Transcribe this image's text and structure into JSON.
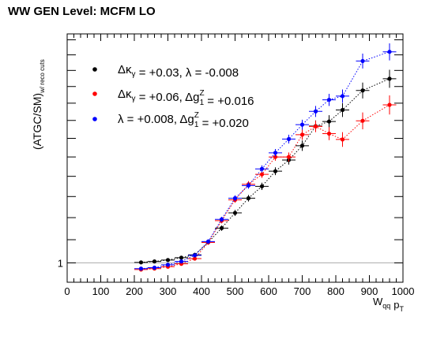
{
  "chart_data": {
    "type": "scatter",
    "title": "WW GEN Level: MCFM LO",
    "xlabel": "W_qq p_T",
    "ylabel": "(ATGC/SM)_w/ reco cuts",
    "xlim": [
      0,
      1000
    ],
    "ylim": [
      0.96,
      1.62
    ],
    "yscale": "log",
    "grid": false,
    "reference_line": 1,
    "x_tick_labels": [
      "0",
      "100",
      "200",
      "300",
      "400",
      "500",
      "600",
      "700",
      "800",
      "900",
      "1000"
    ],
    "y_tick_labels": [
      "1"
    ],
    "legend_position": "top-left",
    "x_error": 20,
    "series": [
      {
        "name": "Δκγ = +0.03, λ = -0.008",
        "color": "#000000",
        "x": [
          220,
          260,
          300,
          340,
          380,
          420,
          460,
          500,
          540,
          580,
          620,
          660,
          700,
          740,
          780,
          820,
          880,
          960
        ],
        "y": [
          1.001,
          1.003,
          1.006,
          1.011,
          1.017,
          1.044,
          1.076,
          1.111,
          1.146,
          1.175,
          1.213,
          1.242,
          1.28,
          1.334,
          1.347,
          1.38,
          1.438,
          1.474
        ],
        "yerr": [
          0.002,
          0.002,
          0.003,
          0.003,
          0.004,
          0.005,
          0.006,
          0.007,
          0.008,
          0.009,
          0.01,
          0.012,
          0.014,
          0.016,
          0.018,
          0.02,
          0.024,
          0.028
        ]
      },
      {
        "name": "Δκγ = +0.06, Δg1Z = +0.016",
        "color": "#ff0000",
        "x": [
          220,
          260,
          300,
          340,
          380,
          420,
          460,
          500,
          540,
          580,
          620,
          660,
          700,
          740,
          780,
          820,
          880,
          960
        ],
        "y": [
          0.986,
          0.988,
          0.992,
          0.998,
          1.009,
          1.044,
          1.093,
          1.142,
          1.18,
          1.205,
          1.25,
          1.25,
          1.31,
          1.333,
          1.313,
          1.297,
          1.349,
          1.395
        ],
        "yerr": [
          0.002,
          0.002,
          0.003,
          0.003,
          0.004,
          0.005,
          0.006,
          0.007,
          0.008,
          0.009,
          0.01,
          0.012,
          0.014,
          0.016,
          0.018,
          0.02,
          0.024,
          0.028
        ]
      },
      {
        "name": "λ = +0.008, Δg1Z = +0.020",
        "color": "#0000ff",
        "x": [
          220,
          260,
          300,
          340,
          380,
          420,
          460,
          500,
          540,
          580,
          620,
          660,
          700,
          740,
          780,
          820,
          880,
          960
        ],
        "y": [
          0.988,
          0.99,
          0.996,
          1.003,
          1.016,
          1.046,
          1.096,
          1.146,
          1.177,
          1.219,
          1.261,
          1.298,
          1.338,
          1.376,
          1.41,
          1.421,
          1.53,
          1.56
        ],
        "yerr": [
          0.002,
          0.002,
          0.003,
          0.003,
          0.004,
          0.005,
          0.006,
          0.007,
          0.008,
          0.009,
          0.01,
          0.012,
          0.014,
          0.016,
          0.018,
          0.02,
          0.024,
          0.028
        ]
      }
    ]
  }
}
